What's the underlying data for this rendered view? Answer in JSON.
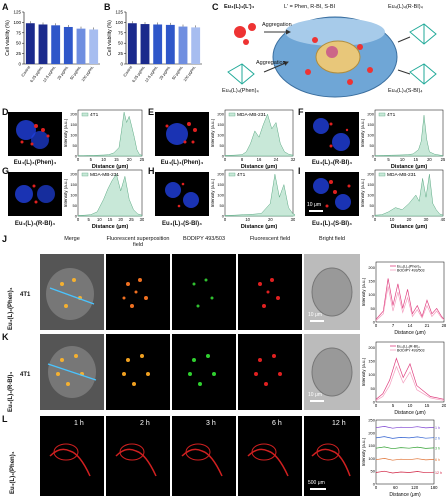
{
  "panel_letters": {
    "A": "A",
    "B": "B",
    "C": "C",
    "D": "D",
    "E": "E",
    "F": "F",
    "G": "G",
    "H": "H",
    "I": "I",
    "J": "J",
    "K": "K",
    "L": "L"
  },
  "colors": {
    "bar_a": "#1b2a8c",
    "bar_b": "#2f57c9",
    "bar_c": "#6f8ee0",
    "bar_d": "#a7bdf0",
    "green_fill": "#c8e8d8",
    "green_line": "#5aa882",
    "pink": "#e04080",
    "red_cell": "#e02020",
    "blue_nuc": "#2040e0"
  },
  "chart_data": [
    {
      "type": "bar",
      "panel": "A",
      "ylabel": "Cell viability (%)",
      "ylim": [
        0,
        125
      ],
      "yticks": [
        "0",
        "25",
        "50",
        "75",
        "100",
        "125"
      ],
      "categories": [
        "Control",
        "6.25 μg/mL",
        "12.5 μg/mL",
        "25 μg/mL",
        "50 μg/mL",
        "100 μg/mL"
      ],
      "values": [
        98,
        95,
        93,
        89,
        85,
        83
      ]
    },
    {
      "type": "bar",
      "panel": "B",
      "ylabel": "Cell viability (%)",
      "ylim": [
        0,
        125
      ],
      "yticks": [
        "0",
        "25",
        "50",
        "75",
        "100",
        "125"
      ],
      "categories": [
        "Control",
        "6.25 μg/mL",
        "12.5 μg/mL",
        "25 μg/mL",
        "50 μg/mL",
        "100 μg/mL"
      ],
      "values": [
        98,
        96,
        95,
        94,
        90,
        88
      ]
    },
    {
      "type": "area",
      "panel": "D",
      "legend": "4T1",
      "xlabel": "Distance (μm)",
      "ylabel": "Intensity (a.u.)",
      "xticks": [
        "0",
        "5",
        "10",
        "15",
        "20",
        "25"
      ],
      "yticks": [
        "0",
        "50",
        "100",
        "150",
        "200"
      ],
      "x": [
        0,
        2,
        4,
        6,
        8,
        10,
        12,
        14,
        16,
        17,
        18,
        19,
        20,
        21,
        22,
        23,
        24,
        25
      ],
      "y": [
        2,
        2,
        3,
        3,
        4,
        5,
        6,
        15,
        40,
        120,
        210,
        160,
        190,
        140,
        90,
        30,
        8,
        3
      ]
    },
    {
      "type": "area",
      "panel": "E",
      "legend": "MDA-MB-231",
      "xlabel": "Distance (μm)",
      "ylabel": "Intensity (a.u.)",
      "xticks": [
        "0",
        "8",
        "16",
        "24",
        "32"
      ],
      "yticks": [
        "0",
        "50",
        "100",
        "150",
        "200"
      ],
      "x": [
        0,
        4,
        8,
        10,
        12,
        14,
        16,
        18,
        20,
        22,
        24,
        26,
        28,
        30,
        32
      ],
      "y": [
        3,
        4,
        6,
        20,
        60,
        120,
        90,
        150,
        200,
        130,
        160,
        60,
        20,
        8,
        4
      ]
    },
    {
      "type": "area",
      "panel": "F",
      "legend": "4T1",
      "xlabel": "Distance (μm)",
      "ylabel": "Intensity (a.u.)",
      "xticks": [
        "0",
        "5",
        "10",
        "15",
        "20",
        "25"
      ],
      "yticks": [
        "0",
        "50",
        "100",
        "150",
        "200"
      ],
      "x": [
        0,
        3,
        6,
        9,
        12,
        14,
        16,
        17,
        18,
        19,
        20,
        22,
        24,
        25
      ],
      "y": [
        2,
        3,
        4,
        5,
        6,
        10,
        30,
        70,
        195,
        80,
        20,
        8,
        4,
        2
      ]
    },
    {
      "type": "area",
      "panel": "G",
      "legend": "MDA-MB-231",
      "xlabel": "Distance (μm)",
      "ylabel": "Intensity (a.u.)",
      "xticks": [
        "0",
        "5",
        "10",
        "15",
        "20",
        "25",
        "30"
      ],
      "yticks": [
        "0",
        "50",
        "100",
        "150",
        "200"
      ],
      "x": [
        0,
        3,
        6,
        9,
        12,
        14,
        16,
        18,
        20,
        22,
        24,
        26,
        28,
        30
      ],
      "y": [
        3,
        4,
        6,
        20,
        80,
        130,
        170,
        200,
        120,
        190,
        80,
        30,
        10,
        4
      ]
    },
    {
      "type": "area",
      "panel": "H",
      "legend": "4T1",
      "xlabel": "Distance (μm)",
      "ylabel": "Intensity (a.u.)",
      "xticks": [
        "0",
        "10",
        "20",
        "30"
      ],
      "yticks": [
        "0",
        "50",
        "100",
        "150",
        "200"
      ],
      "x": [
        0,
        4,
        8,
        12,
        16,
        20,
        22,
        24,
        26,
        28,
        30,
        32,
        34
      ],
      "y": [
        3,
        4,
        6,
        8,
        12,
        60,
        200,
        90,
        150,
        40,
        10,
        5,
        3
      ]
    },
    {
      "type": "area",
      "panel": "I",
      "legend": "MDA-MB-231",
      "xlabel": "Distance (μm)",
      "ylabel": "Intensity (a.u.)",
      "xticks": [
        "0",
        "10",
        "20",
        "30",
        "40"
      ],
      "yticks": [
        "0",
        "50",
        "100",
        "150",
        "200"
      ],
      "x": [
        0,
        4,
        8,
        12,
        16,
        20,
        24,
        26,
        28,
        30,
        32,
        34,
        36,
        38,
        40
      ],
      "y": [
        4,
        6,
        20,
        40,
        30,
        60,
        100,
        70,
        180,
        90,
        200,
        60,
        30,
        10,
        4
      ]
    },
    {
      "type": "line",
      "panel": "J",
      "legend": [
        "Eu₄(L)₄(Phen)₄",
        "BODIPY 493/503"
      ],
      "xlabel": "Distance (μm)",
      "ylabel": "Intensity (a.u.)",
      "xticks": [
        "0",
        "7",
        "14",
        "21",
        "28"
      ],
      "yticks": [
        "0",
        "50",
        "100",
        "150",
        "200"
      ],
      "series": [
        {
          "name": "Eu₄(L)₄(Phen)₄",
          "x": [
            0,
            3,
            5,
            7,
            9,
            11,
            13,
            15,
            17,
            19,
            21,
            23,
            25,
            27,
            28
          ],
          "y": [
            10,
            40,
            160,
            60,
            140,
            50,
            120,
            30,
            60,
            20,
            80,
            30,
            50,
            20,
            10
          ]
        },
        {
          "name": "BODIPY 493/503",
          "x": [
            0,
            3,
            5,
            7,
            9,
            11,
            13,
            15,
            17,
            19,
            21,
            23,
            25,
            27,
            28
          ],
          "y": [
            5,
            30,
            130,
            40,
            110,
            35,
            90,
            20,
            45,
            15,
            60,
            20,
            40,
            15,
            8
          ]
        }
      ]
    },
    {
      "type": "line",
      "panel": "K",
      "legend": [
        "Eu₄(L)₄(R-BI)₄",
        "BODIPY 493/503"
      ],
      "xlabel": "Distance (μm)",
      "ylabel": "Intensity (a.u.)",
      "xticks": [
        "0",
        "5",
        "10",
        "15",
        "20"
      ],
      "yticks": [
        "0",
        "50",
        "100",
        "150",
        "200"
      ],
      "series": [
        {
          "name": "Eu₄(L)₄(R-BI)₄",
          "x": [
            0,
            2,
            4,
            6,
            8,
            10,
            12,
            14,
            16,
            18,
            20
          ],
          "y": [
            10,
            30,
            80,
            160,
            90,
            140,
            60,
            40,
            20,
            15,
            10
          ]
        },
        {
          "name": "BODIPY 493/503",
          "x": [
            0,
            2,
            4,
            6,
            8,
            10,
            12,
            14,
            16,
            18,
            20
          ],
          "y": [
            5,
            20,
            60,
            130,
            70,
            110,
            45,
            30,
            15,
            10,
            6
          ]
        }
      ]
    },
    {
      "type": "line",
      "panel": "L",
      "legend": [
        "1 h",
        "2 h",
        "3 h",
        "6 h",
        "12 h"
      ],
      "xlabel": "Distance (μm)",
      "ylabel": "Intensity (a.u.)",
      "xticks": [
        "0",
        "60",
        "120",
        "180"
      ],
      "yticks": [
        "0",
        "50",
        "100",
        "150",
        "200",
        "250"
      ],
      "series": [
        {
          "name": "1 h",
          "values": [
            220,
            225,
            218,
            222,
            220,
            224,
            219,
            221
          ]
        },
        {
          "name": "2 h",
          "values": [
            180,
            185,
            178,
            182,
            180,
            184,
            179,
            181
          ]
        },
        {
          "name": "3 h",
          "values": [
            140,
            145,
            138,
            142,
            140,
            144,
            139,
            141
          ]
        },
        {
          "name": "6 h",
          "values": [
            95,
            100,
            93,
            97,
            95,
            99,
            94,
            96
          ]
        },
        {
          "name": "12 h",
          "values": [
            45,
            50,
            43,
            47,
            45,
            49,
            44,
            46
          ]
        }
      ]
    }
  ],
  "panelC": {
    "top_left_formula": "Eu₄(L)₄(L')₄",
    "ligand_def": "L' = Phen, R-BI, S-BI",
    "aggregation1": "Aggregation",
    "aggregation2": "Aggregation",
    "right_top": "Eu₄(L)₄(R-BI)₄",
    "left_bottom": "Eu₄(L)₄(Phen)₄",
    "right_bottom": "Eu₄(L)₄(S-BI)₄"
  },
  "panel_captions": {
    "D": "Eu₄(L)₄(Phen)₄",
    "E": "Eu₄(L)₄(Phen)₄",
    "F": "Eu₄(L)₄(R-BI)₄",
    "G": "Eu₄(L)₄(R-BI)₄",
    "H": "Eu₄(L)₄(S-BI)₄",
    "I": "Eu₄(L)₄(S-BI)₄"
  },
  "scalebar_I": "10 μm",
  "column_headers": [
    "Merge",
    "Fluorescent superposition field",
    "BODIPY 493/503",
    "Fluorescent field",
    "Bright field"
  ],
  "row_labels": {
    "J_cell": "4T1",
    "J_complex": "Eu₄(L)₄(Phen)₄",
    "K_cell": "4T1",
    "K_complex": "Eu₄(L)₄(R-BI)₄",
    "L_complex": "Eu₄(L)₄(Phen)₄"
  },
  "scalebar_J": "10 μm",
  "scalebar_K": "10 μm",
  "scalebar_L": "500 μm",
  "time_labels": [
    "1 h",
    "2 h",
    "3 h",
    "6 h",
    "12 h"
  ]
}
